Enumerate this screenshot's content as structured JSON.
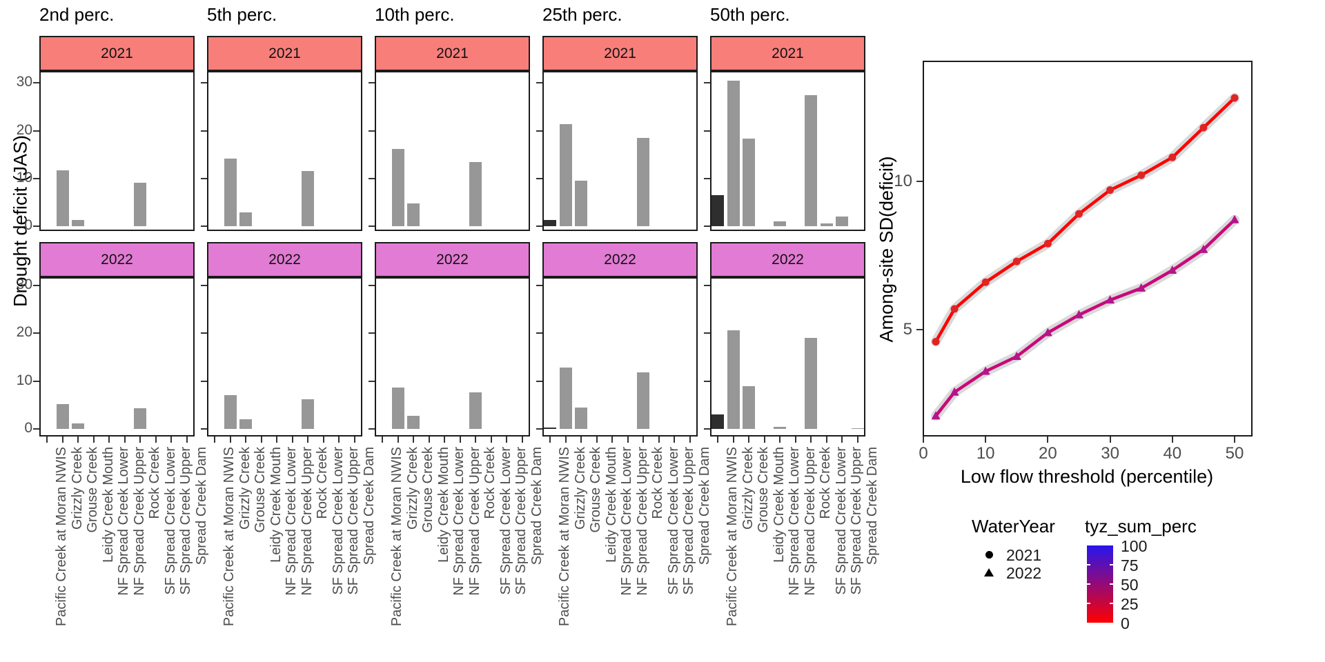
{
  "chart_data": [
    {
      "type": "bar",
      "title": "",
      "ylabel": "Drought deficit (JAS)",
      "yticks": [
        0,
        10,
        20,
        30
      ],
      "ylim": [
        0,
        32
      ],
      "grid": false,
      "categories": [
        "Pacific Creek at Moran NWIS",
        "Grizzly Creek",
        "Grouse Creek",
        "Leidy Creek Mouth",
        "NF Spread Creek Lower",
        "NF Spread Creek Upper",
        "Rock Creek",
        "SF Spread Creek Lower",
        "SF Spread Creek Upper",
        "Spread Creek Dam"
      ],
      "row_strips": [
        {
          "year": "2021",
          "color": "#F87E7A"
        },
        {
          "year": "2022",
          "color": "#E27BD3"
        }
      ],
      "bar_color": "#979797",
      "first_site_bar_color": "#2E2E2E",
      "facets": [
        {
          "title": "2nd perc.",
          "values": {
            "2021": [
              0,
              11.7,
              1.3,
              0,
              0,
              0,
              9.2,
              0,
              0,
              0
            ],
            "2022": [
              0,
              5.2,
              1.1,
              0,
              0,
              0,
              4.4,
              0,
              0,
              0
            ]
          }
        },
        {
          "title": "5th perc.",
          "values": {
            "2021": [
              0,
              14.2,
              3.0,
              0,
              0,
              0,
              11.6,
              0,
              0,
              0
            ],
            "2022": [
              0,
              7.1,
              2.0,
              0,
              0,
              0,
              6.2,
              0,
              0,
              0
            ]
          }
        },
        {
          "title": "10th perc.",
          "values": {
            "2021": [
              0,
              16.2,
              4.8,
              0,
              0,
              0,
              13.5,
              0,
              0,
              0
            ],
            "2022": [
              0,
              8.6,
              2.7,
              0,
              0,
              0,
              7.7,
              0,
              0,
              0
            ]
          }
        },
        {
          "title": "25th perc.",
          "values": {
            "2021": [
              1.3,
              21.4,
              9.5,
              0,
              0,
              0,
              18.5,
              0,
              0,
              0
            ],
            "2022": [
              0.3,
              12.9,
              4.5,
              0,
              0,
              0,
              11.8,
              0,
              0,
              0
            ]
          }
        },
        {
          "title": "50th perc.",
          "values": {
            "2021": [
              6.6,
              30.5,
              18.3,
              0,
              1.1,
              0,
              27.5,
              0.6,
              2.1,
              0
            ],
            "2022": [
              3.0,
              20.7,
              9.0,
              0,
              0.5,
              0,
              19.1,
              0,
              0,
              0.2
            ]
          }
        }
      ]
    },
    {
      "type": "line",
      "xlabel": "Low flow threshold (percentile)",
      "ylabel": "Among-site SD(deficit)",
      "xticks": [
        0,
        10,
        20,
        30,
        40,
        50
      ],
      "yticks": [
        5,
        10
      ],
      "xlim": [
        -0.1,
        52.7
      ],
      "ylim": [
        1.4,
        14.1
      ],
      "grid": false,
      "ribbon_color": "#D9D9D9",
      "x": [
        2,
        5,
        10,
        15,
        20,
        25,
        30,
        35,
        40,
        45,
        50
      ],
      "series": [
        {
          "name": "2021",
          "marker": "circle",
          "color": "#FF0000",
          "point_color": "#E02424",
          "values": [
            4.6,
            5.7,
            6.6,
            7.3,
            7.9,
            8.9,
            9.7,
            10.2,
            10.8,
            11.8,
            12.8
          ]
        },
        {
          "name": "2022",
          "marker": "triangle",
          "color": "#C9087A",
          "point_color": "#B3158A",
          "values": [
            2.1,
            2.9,
            3.6,
            4.1,
            4.9,
            5.5,
            6.0,
            6.4,
            7.0,
            7.7,
            8.7
          ]
        }
      ]
    }
  ],
  "legends": {
    "shape": {
      "title": "WaterYear",
      "entries": [
        {
          "label": "2021",
          "marker": "circle"
        },
        {
          "label": "2022",
          "marker": "triangle"
        }
      ]
    },
    "gradient": {
      "title": "tyz_sum_perc",
      "ticks": [
        100,
        75,
        50,
        25,
        0
      ],
      "top_color": "#2715EE",
      "bottom_color": "#FF0000"
    }
  }
}
